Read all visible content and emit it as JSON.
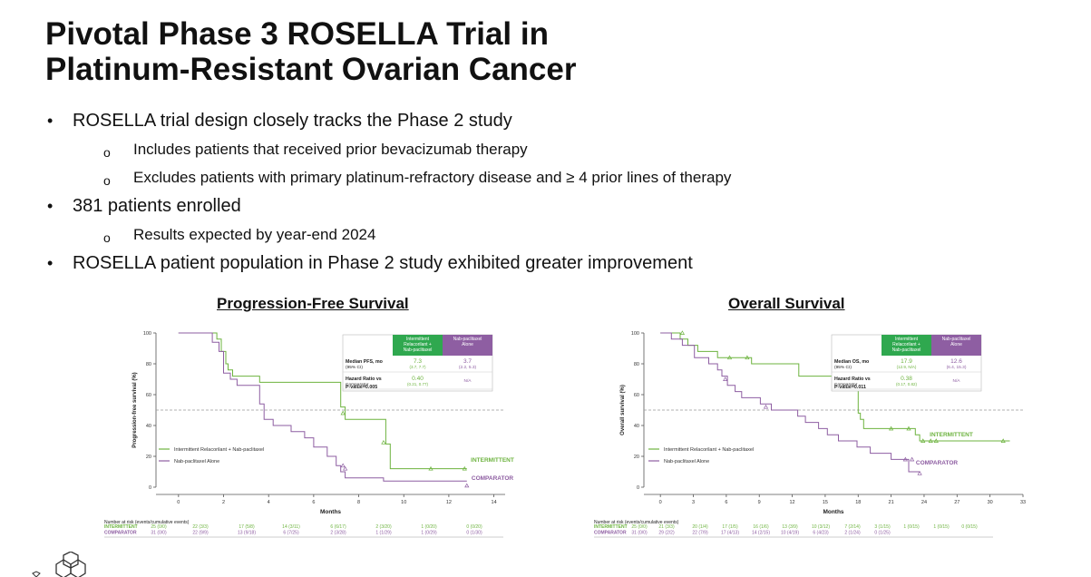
{
  "title_line1": "Pivotal Phase 3 ROSELLA Trial in",
  "title_line2": "Platinum-Resistant Ovarian Cancer",
  "bullets": [
    "ROSELLA trial design closely tracks the Phase 2 study",
    "Includes patients that received prior bevacizumab therapy",
    "Excludes patients with primary platinum-refractory disease and ≥ 4 prior lines of therapy",
    "381 patients enrolled",
    "Results expected by year-end 2024",
    "ROSELLA patient population in Phase 2 study exhibited greater improvement"
  ],
  "colors": {
    "intermittent": "#6db33f",
    "comparator": "#8e5ea2",
    "header_green": "#2fa84f",
    "header_purple": "#8e5ea2"
  },
  "chart_data": [
    {
      "type": "line",
      "title": "Progression-Free Survival",
      "xlabel": "Months",
      "ylabel": "Progression-free survival (%)",
      "xlim": [
        -1,
        14.5
      ],
      "ylim": [
        0,
        100
      ],
      "xticks": [
        0,
        2,
        4,
        6,
        8,
        10,
        12,
        14
      ],
      "yticks": [
        0,
        20,
        40,
        60,
        80,
        100
      ],
      "reference_line": 50,
      "legend": [
        "Intermittent Relacorilant + Nab-paclitaxel",
        "Nab-paclitaxel Alone"
      ],
      "series": [
        {
          "name": "INTERMITTENT",
          "step_points": [
            [
              0,
              100
            ],
            [
              1.7,
              100
            ],
            [
              1.7,
              96
            ],
            [
              1.9,
              96
            ],
            [
              1.9,
              88
            ],
            [
              2.1,
              88
            ],
            [
              2.1,
              80
            ],
            [
              2.2,
              80
            ],
            [
              2.2,
              76
            ],
            [
              2.4,
              76
            ],
            [
              2.4,
              72
            ],
            [
              3.6,
              72
            ],
            [
              3.6,
              68
            ],
            [
              7.2,
              68
            ],
            [
              7.2,
              52
            ],
            [
              7.4,
              52
            ],
            [
              7.4,
              44
            ],
            [
              9.2,
              44
            ],
            [
              9.2,
              28
            ],
            [
              9.4,
              28
            ],
            [
              9.4,
              12
            ],
            [
              12.8,
              12
            ]
          ],
          "censor_points": [
            [
              7.3,
              48
            ],
            [
              9.1,
              29
            ],
            [
              11.2,
              12
            ],
            [
              12.7,
              12
            ]
          ]
        },
        {
          "name": "COMPARATOR",
          "step_points": [
            [
              0,
              100
            ],
            [
              1.5,
              100
            ],
            [
              1.5,
              94
            ],
            [
              1.8,
              94
            ],
            [
              1.8,
              88
            ],
            [
              2,
              88
            ],
            [
              2,
              74
            ],
            [
              2.3,
              74
            ],
            [
              2.3,
              70
            ],
            [
              2.6,
              70
            ],
            [
              2.6,
              66
            ],
            [
              3.6,
              66
            ],
            [
              3.6,
              54
            ],
            [
              3.8,
              54
            ],
            [
              3.8,
              44
            ],
            [
              4.2,
              44
            ],
            [
              4.2,
              40
            ],
            [
              5,
              40
            ],
            [
              5,
              36
            ],
            [
              5.6,
              36
            ],
            [
              5.6,
              32
            ],
            [
              6,
              32
            ],
            [
              6,
              26
            ],
            [
              6.6,
              26
            ],
            [
              6.6,
              20
            ],
            [
              7,
              20
            ],
            [
              7,
              14
            ],
            [
              7.2,
              14
            ],
            [
              7.2,
              10
            ],
            [
              7.4,
              10
            ],
            [
              7.4,
              6
            ],
            [
              9.1,
              6
            ],
            [
              9.1,
              4
            ],
            [
              12.8,
              4
            ]
          ],
          "censor_points": [
            [
              7.4,
              12
            ],
            [
              7.3,
              14
            ],
            [
              12.8,
              1
            ]
          ]
        }
      ],
      "stats_table": {
        "headers": [
          "Intermittent Relacorilant + Nab-paclitaxel",
          "Nab-paclitaxel Alone"
        ],
        "rows": [
          {
            "label": "Median PFS, mo",
            "sublabel": "(95% CI)",
            "v1": "7.3",
            "v1_ci": "(3.7, 7.7)",
            "v2": "3.7",
            "v2_ci": "(2.2, 5.3)"
          },
          {
            "label": "Hazard Ratio vs",
            "sublabel": "Comparator",
            "v1": "0.40",
            "v1_ci": "(0.21, 0.77)",
            "v2": "",
            "v2_ci": "N/A"
          }
        ],
        "pvalue": "P-value=0.005"
      },
      "series_labels": [
        "INTERMITTENT",
        "COMPARATOR"
      ],
      "risk_table": {
        "heading": "Number at risk (events/cumulative events)",
        "rows": [
          {
            "label": "INTERMITTENT",
            "values": [
              "25 (0/0)",
              "22 (3/3)",
              "17 (5/8)",
              "14 (3/11)",
              "6 (6/17)",
              "2 (3/20)",
              "1 (0/20)",
              "0 (0/20)"
            ]
          },
          {
            "label": "COMPARATOR",
            "values": [
              "31 (0/0)",
              "22 (9/9)",
              "13 (9/18)",
              "6 (7/25)",
              "2 (3/28)",
              "1 (1/29)",
              "1 (0/29)",
              "0 (1/30)"
            ]
          }
        ]
      }
    },
    {
      "type": "line",
      "title": "Overall Survival",
      "xlabel": "Months",
      "ylabel": "Overall survival (%)",
      "xlim": [
        -1.5,
        33
      ],
      "ylim": [
        0,
        100
      ],
      "xticks": [
        0,
        3,
        6,
        9,
        12,
        15,
        18,
        21,
        24,
        27,
        30,
        33
      ],
      "yticks": [
        0,
        20,
        40,
        60,
        80,
        100
      ],
      "reference_line": 50,
      "legend": [
        "Intermittent Relacorilant + Nab-paclitaxel",
        "Nab-paclitaxel Alone"
      ],
      "series": [
        {
          "name": "INTERMITTENT",
          "step_points": [
            [
              0,
              100
            ],
            [
              1.8,
              100
            ],
            [
              1.8,
              96
            ],
            [
              2.5,
              96
            ],
            [
              2.5,
              92
            ],
            [
              3.4,
              92
            ],
            [
              3.4,
              88
            ],
            [
              5.2,
              88
            ],
            [
              5.2,
              84
            ],
            [
              8.3,
              84
            ],
            [
              8.3,
              80
            ],
            [
              12.6,
              80
            ],
            [
              12.6,
              72
            ],
            [
              16.4,
              72
            ],
            [
              16.4,
              64
            ],
            [
              18,
              64
            ],
            [
              18,
              48
            ],
            [
              18.2,
              48
            ],
            [
              18.2,
              44
            ],
            [
              18.5,
              44
            ],
            [
              18.5,
              38
            ],
            [
              23.2,
              38
            ],
            [
              23.2,
              34
            ],
            [
              23.6,
              34
            ],
            [
              23.6,
              30
            ],
            [
              31.8,
              30
            ]
          ],
          "censor_points": [
            [
              2,
              100
            ],
            [
              6.3,
              84
            ],
            [
              7.9,
              84
            ],
            [
              21,
              38
            ],
            [
              22.6,
              38
            ],
            [
              23.9,
              30
            ],
            [
              24.6,
              30
            ],
            [
              25.1,
              30
            ],
            [
              31.2,
              30
            ]
          ]
        },
        {
          "name": "COMPARATOR",
          "step_points": [
            [
              0,
              100
            ],
            [
              1,
              100
            ],
            [
              1,
              96
            ],
            [
              2,
              96
            ],
            [
              2,
              92
            ],
            [
              3.1,
              92
            ],
            [
              3.1,
              84
            ],
            [
              4.4,
              84
            ],
            [
              4.4,
              80
            ],
            [
              5.2,
              80
            ],
            [
              5.2,
              76
            ],
            [
              5.6,
              76
            ],
            [
              5.6,
              72
            ],
            [
              6.1,
              72
            ],
            [
              6.1,
              66
            ],
            [
              6.8,
              66
            ],
            [
              6.8,
              62
            ],
            [
              7.4,
              62
            ],
            [
              7.4,
              58
            ],
            [
              9.1,
              58
            ],
            [
              9.1,
              54
            ],
            [
              10.1,
              54
            ],
            [
              10.1,
              50
            ],
            [
              12.5,
              50
            ],
            [
              12.5,
              46
            ],
            [
              13.2,
              46
            ],
            [
              13.2,
              42
            ],
            [
              14.4,
              42
            ],
            [
              14.4,
              38
            ],
            [
              15.2,
              38
            ],
            [
              15.2,
              34
            ],
            [
              16.2,
              34
            ],
            [
              16.2,
              30
            ],
            [
              17.9,
              30
            ],
            [
              17.9,
              26
            ],
            [
              19.1,
              26
            ],
            [
              19.1,
              22
            ],
            [
              21,
              22
            ],
            [
              21,
              18
            ],
            [
              22.6,
              18
            ],
            [
              22.6,
              10
            ],
            [
              23.6,
              10
            ]
          ],
          "censor_points": [
            [
              5.9,
              70
            ],
            [
              9.6,
              52
            ],
            [
              22.3,
              18
            ],
            [
              22.9,
              18
            ],
            [
              23.6,
              9
            ]
          ]
        }
      ],
      "stats_table": {
        "headers": [
          "Intermittent Relacorilant + Nab-paclitaxel",
          "Nab-paclitaxel Alone"
        ],
        "rows": [
          {
            "label": "Median OS, mo",
            "sublabel": "(95% CI)",
            "v1": "17.9",
            "v1_ci": "(12.9, N/A)",
            "v2": "12.6",
            "v2_ci": "(6.4, 15.3)"
          },
          {
            "label": "Hazard Ratio vs",
            "sublabel": "Comparator",
            "v1": "0.38",
            "v1_ci": "(0.17, 0.82)",
            "v2": "",
            "v2_ci": "N/A"
          }
        ],
        "pvalue": "P-value=0.011"
      },
      "series_labels": [
        "INTERMITTENT",
        "COMPARATOR"
      ],
      "risk_table": {
        "heading": "Number at risk (events/cumulative events)",
        "rows": [
          {
            "label": "INTERMITTENT",
            "values": [
              "25 (0/0)",
              "21 (3/3)",
              "20 (1/4)",
              "17 (1/5)",
              "16 (1/6)",
              "13 (3/9)",
              "10 (3/12)",
              "7 (2/14)",
              "3 (1/15)",
              "1 (0/15)",
              "1 (0/15)",
              "0 (0/15)"
            ]
          },
          {
            "label": "COMPARATOR",
            "values": [
              "31 (0/0)",
              "29 (2/2)",
              "22 (7/9)",
              "17 (4/13)",
              "14 (2/15)",
              "10 (4/19)",
              "6 (4/23)",
              "2 (1/24)",
              "0 (1/25)",
              "",
              "",
              ""
            ]
          }
        ]
      }
    }
  ]
}
